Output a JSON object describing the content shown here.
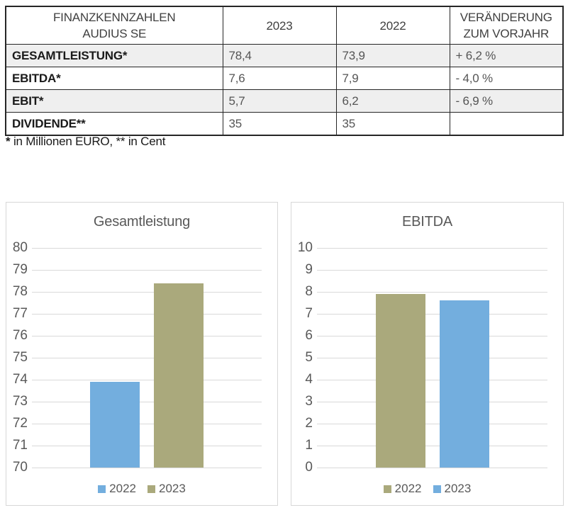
{
  "table": {
    "header": {
      "title_line1": "FINANZKENNZAHLEN",
      "title_line2": "AUDIUS SE",
      "col_2023": "2023",
      "col_2022": "2022",
      "change_line1": "VERÄNDERUNG",
      "change_line2": "ZUM VORJAHR"
    },
    "rows": [
      {
        "label": "GESAMTLEISTUNG*",
        "y2023": "78,4",
        "y2022": "73,9",
        "change": "+ 6,2 %"
      },
      {
        "label": "EBITDA*",
        "y2023": "7,6",
        "y2022": "7,9",
        "change": "- 4,0 %"
      },
      {
        "label": "EBIT*",
        "y2023": "5,7",
        "y2022": "6,2",
        "change": "- 6,9 %"
      },
      {
        "label": "DIVIDENDE**",
        "y2023": "35",
        "y2022": "35",
        "change": ""
      }
    ],
    "footnote": {
      "star": "*",
      "text": " in Millionen EURO, ** in Cent"
    }
  },
  "chart_data": [
    {
      "type": "bar",
      "title": "Gesamtleistung",
      "categories": [
        ""
      ],
      "series": [
        {
          "name": "2022",
          "values": [
            73.9
          ],
          "color": "#73AEDE"
        },
        {
          "name": "2023",
          "values": [
            78.4
          ],
          "color": "#AAA97C"
        }
      ],
      "ylim": [
        70,
        80
      ],
      "ytick_step": 1,
      "grid": true,
      "legend_position": "bottom"
    },
    {
      "type": "bar",
      "title": "EBITDA",
      "categories": [
        ""
      ],
      "series": [
        {
          "name": "2022",
          "values": [
            7.9
          ],
          "color": "#AAA97C"
        },
        {
          "name": "2023",
          "values": [
            7.6
          ],
          "color": "#73AEDE"
        }
      ],
      "ylim": [
        0,
        10
      ],
      "ytick_step": 1,
      "grid": true,
      "legend_position": "bottom"
    }
  ],
  "colors": {
    "bar_blue": "#73AEDE",
    "bar_olive": "#AAA97C",
    "gridline": "#D9D9D9",
    "panel_border": "#D7D7D7",
    "table_border": "#262626",
    "row_alt_bg": "#EFEFEF",
    "muted_text": "#595959"
  }
}
